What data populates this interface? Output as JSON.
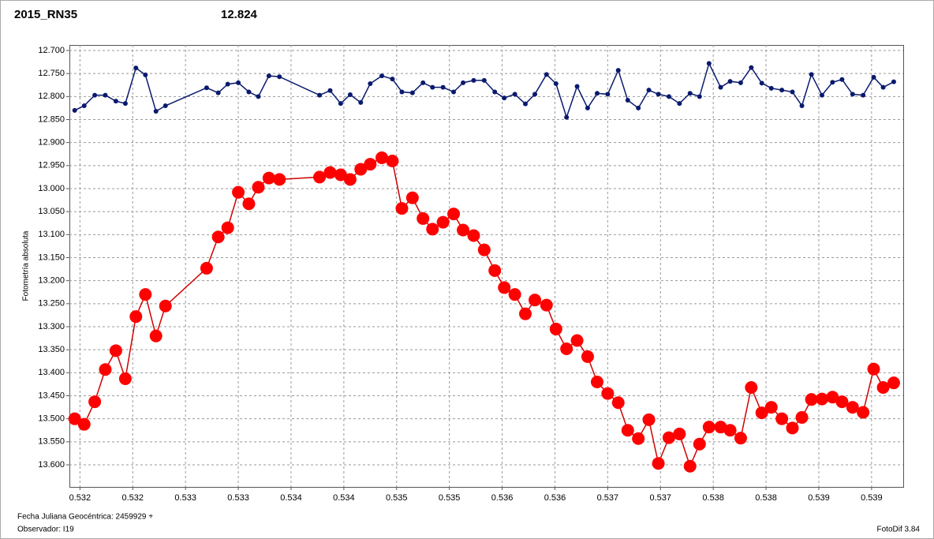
{
  "chart_data": {
    "type": "line",
    "title": "2015_RN35",
    "subtitle": "12.824",
    "y_label": "Fotometría absoluta",
    "footer_left": [
      "Fecha Juliana Geocéntrica: 2459929 +",
      "Observador: I19"
    ],
    "footer_right": "FotoDif 3.84",
    "title_color": "#e00000",
    "subtitle_color": "#1a237e",
    "x": [
      0.53175,
      0.53184,
      0.53194,
      0.53204,
      0.53214,
      0.53223,
      0.53233,
      0.53242,
      0.53252,
      0.53261,
      0.533,
      0.53311,
      0.5332,
      0.5333,
      0.5334,
      0.53349,
      0.53359,
      0.53369,
      0.53407,
      0.53417,
      0.53427,
      0.53436,
      0.53446,
      0.53455,
      0.53466,
      0.53476,
      0.53485,
      0.53495,
      0.53505,
      0.53514,
      0.53524,
      0.53534,
      0.53543,
      0.53553,
      0.53563,
      0.53573,
      0.53582,
      0.53592,
      0.53602,
      0.53611,
      0.53622,
      0.53631,
      0.53641,
      0.53651,
      0.53661,
      0.5367,
      0.5368,
      0.5369,
      0.53699,
      0.53709,
      0.53719,
      0.53728,
      0.53738,
      0.53748,
      0.53758,
      0.53767,
      0.53776,
      0.53787,
      0.53796,
      0.53806,
      0.53816,
      0.53826,
      0.53835,
      0.53845,
      0.53855,
      0.53864,
      0.53873,
      0.53883,
      0.53893,
      0.53902,
      0.53912,
      0.53922,
      0.53932,
      0.53941,
      0.53951
    ],
    "series": [
      {
        "color": "#0a1a6e",
        "marker_size": 3,
        "values": [
          12.83,
          12.82,
          12.797,
          12.797,
          12.81,
          12.815,
          12.738,
          12.753,
          12.832,
          12.82,
          12.781,
          12.792,
          12.773,
          12.77,
          12.79,
          12.8,
          12.755,
          12.757,
          12.797,
          12.787,
          12.815,
          12.796,
          12.813,
          12.772,
          12.755,
          12.762,
          12.79,
          12.792,
          12.77,
          12.78,
          12.78,
          12.79,
          12.77,
          12.765,
          12.765,
          12.79,
          12.803,
          12.795,
          12.816,
          12.795,
          12.752,
          12.772,
          12.845,
          12.778,
          12.825,
          12.793,
          12.795,
          12.743,
          12.808,
          12.825,
          12.786,
          12.795,
          12.8,
          12.815,
          12.793,
          12.8,
          12.728,
          12.78,
          12.767,
          12.77,
          12.737,
          12.771,
          12.782,
          12.786,
          12.79,
          12.82,
          12.752,
          12.797,
          12.769,
          12.763,
          12.795,
          12.797,
          12.758,
          12.78,
          12.768
        ]
      },
      {
        "color": "#ff0000",
        "line_color": "#d00000",
        "marker_size": 8,
        "values": [
          13.5,
          13.512,
          13.463,
          13.393,
          13.352,
          13.413,
          13.278,
          13.23,
          13.32,
          13.255,
          13.173,
          13.105,
          13.085,
          13.008,
          13.033,
          12.997,
          12.977,
          12.98,
          12.975,
          12.965,
          12.97,
          12.98,
          12.958,
          12.947,
          12.933,
          12.94,
          13.043,
          13.02,
          13.065,
          13.088,
          13.073,
          13.055,
          13.09,
          13.102,
          13.133,
          13.178,
          13.215,
          13.23,
          13.272,
          13.242,
          13.253,
          13.305,
          13.348,
          13.33,
          13.365,
          13.42,
          13.445,
          13.465,
          13.525,
          13.543,
          13.502,
          13.597,
          13.541,
          13.533,
          13.603,
          13.555,
          13.518,
          13.518,
          13.525,
          13.542,
          13.432,
          13.487,
          13.475,
          13.5,
          13.52,
          13.497,
          13.458,
          13.457,
          13.453,
          13.463,
          13.475,
          13.486,
          13.392,
          13.432,
          13.422
        ]
      }
    ],
    "xlim": [
      0.5317,
      0.5396
    ],
    "xticks": [
      {
        "value": 0.5318,
        "label": "0.532"
      },
      {
        "value": 0.5323,
        "label": "0.532"
      },
      {
        "value": 0.5328,
        "label": "0.533"
      },
      {
        "value": 0.5333,
        "label": "0.533"
      },
      {
        "value": 0.5338,
        "label": "0.534"
      },
      {
        "value": 0.5343,
        "label": "0.534"
      },
      {
        "value": 0.5348,
        "label": "0.535"
      },
      {
        "value": 0.5353,
        "label": "0.535"
      },
      {
        "value": 0.5358,
        "label": "0.536"
      },
      {
        "value": 0.5363,
        "label": "0.536"
      },
      {
        "value": 0.5368,
        "label": "0.537"
      },
      {
        "value": 0.5373,
        "label": "0.537"
      },
      {
        "value": 0.5378,
        "label": "0.538"
      },
      {
        "value": 0.5383,
        "label": "0.538"
      },
      {
        "value": 0.5388,
        "label": "0.539"
      },
      {
        "value": 0.5393,
        "label": "0.539"
      }
    ],
    "ylim": [
      12.688,
      13.648
    ],
    "y_reversed": true,
    "yticks": [
      {
        "value": 12.7,
        "label": "12.700"
      },
      {
        "value": 12.75,
        "label": "12.750"
      },
      {
        "value": 12.8,
        "label": "12.800"
      },
      {
        "value": 12.85,
        "label": "12.850"
      },
      {
        "value": 12.9,
        "label": "12.900"
      },
      {
        "value": 12.95,
        "label": "12.950"
      },
      {
        "value": 13.0,
        "label": "13.000"
      },
      {
        "value": 13.05,
        "label": "13.050"
      },
      {
        "value": 13.1,
        "label": "13.100"
      },
      {
        "value": 13.15,
        "label": "13.150"
      },
      {
        "value": 13.2,
        "label": "13.200"
      },
      {
        "value": 13.25,
        "label": "13.250"
      },
      {
        "value": 13.3,
        "label": "13.300"
      },
      {
        "value": 13.35,
        "label": "13.350"
      },
      {
        "value": 13.4,
        "label": "13.400"
      },
      {
        "value": 13.45,
        "label": "13.450"
      },
      {
        "value": 13.5,
        "label": "13.500"
      },
      {
        "value": 13.55,
        "label": "13.550"
      },
      {
        "value": 13.6,
        "label": "13.600"
      }
    ],
    "grid": true
  }
}
